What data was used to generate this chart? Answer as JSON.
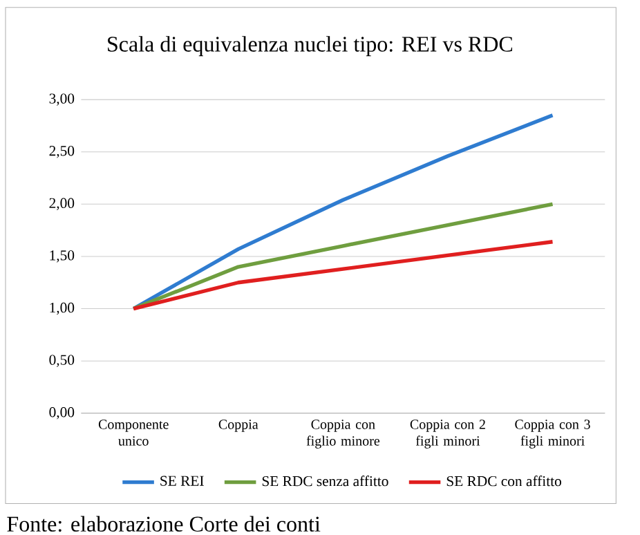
{
  "chart_data": {
    "type": "line",
    "title": "Scala di equivalenza nuclei tipo: REI vs RDC",
    "categories": [
      "Componente unico",
      "Coppia",
      "Coppia con figlio minore",
      "Coppia con 2 figli minori",
      "Coppia con 3 figli minori"
    ],
    "series": [
      {
        "name": "SE REI",
        "color": "#2f7cd0",
        "values": [
          1.0,
          1.57,
          2.04,
          2.46,
          2.85
        ]
      },
      {
        "name": "SE RDC senza affitto",
        "color": "#6f9e3f",
        "values": [
          1.0,
          1.4,
          1.6,
          1.8,
          2.0
        ]
      },
      {
        "name": "SE RDC con affitto",
        "color": "#e01f1f",
        "values": [
          1.0,
          1.25,
          1.38,
          1.51,
          1.64
        ]
      }
    ],
    "ylim": [
      0,
      3
    ],
    "yticks": [
      {
        "value": 0,
        "label": "0,00"
      },
      {
        "value": 0.5,
        "label": "0,50"
      },
      {
        "value": 1,
        "label": "1,00"
      },
      {
        "value": 1.5,
        "label": "1,50"
      },
      {
        "value": 2,
        "label": "2,00"
      },
      {
        "value": 2.5,
        "label": "2,50"
      },
      {
        "value": 3,
        "label": "3,00"
      }
    ],
    "grid": "y",
    "legend": "bottom",
    "marker": "none",
    "line_style": "solid",
    "annotations": [
      "Fonte: elaborazione Corte dei conti"
    ]
  }
}
